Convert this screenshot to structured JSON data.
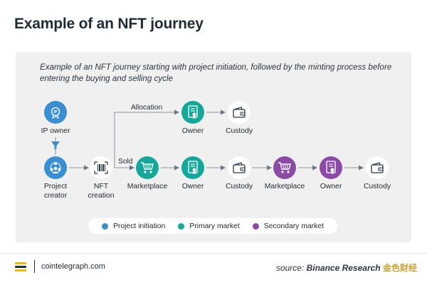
{
  "title": "Example of an NFT journey",
  "caption": "Example of an NFT journey starting with project initiation, followed by the minting process before entering the buying and selling cycle",
  "colors": {
    "project_initiation": "#3a8fd2",
    "primary_market": "#14a89a",
    "secondary_market": "#8a4aa6"
  },
  "nodes": {
    "ip_owner": {
      "label": "IP owner",
      "icon": "ip-badge-icon",
      "stage": "project_initiation"
    },
    "project_creator": {
      "label_line1": "Project",
      "label_line2": "creator",
      "icon": "people-network-icon",
      "stage": "project_initiation"
    },
    "nft_creation": {
      "label_line1": "NFT",
      "label_line2": "creation",
      "icon": "barcode-scan-icon"
    },
    "marketplace_primary": {
      "label": "Marketplace",
      "icon": "shopping-cart-icon",
      "stage": "primary_market"
    },
    "owner_allocation": {
      "label": "Owner",
      "icon": "certificate-icon",
      "stage": "primary_market"
    },
    "custody_allocation": {
      "label": "Custody",
      "icon": "wallet-icon"
    },
    "owner_primary": {
      "label": "Owner",
      "icon": "certificate-icon",
      "stage": "primary_market"
    },
    "custody_primary": {
      "label": "Custody",
      "icon": "wallet-icon"
    },
    "marketplace_secondary": {
      "label": "Marketplace",
      "icon": "shopping-cart-icon",
      "stage": "secondary_market"
    },
    "owner_secondary": {
      "label": "Owner",
      "icon": "certificate-icon",
      "stage": "secondary_market"
    },
    "custody_secondary": {
      "label": "Custody",
      "icon": "wallet-icon"
    }
  },
  "edges": {
    "allocation": "Allocation",
    "sold": "Sold"
  },
  "legend": [
    {
      "label": "Project initiation",
      "color": "#3a8fd2"
    },
    {
      "label": "Primary market",
      "color": "#14a89a"
    },
    {
      "label": "Secondary market",
      "color": "#8a4aa6"
    }
  ],
  "footer": {
    "brand": "cointelegraph.com",
    "source_prefix": "source: ",
    "source_name": "Binance Research",
    "watermark": "金色财经"
  }
}
